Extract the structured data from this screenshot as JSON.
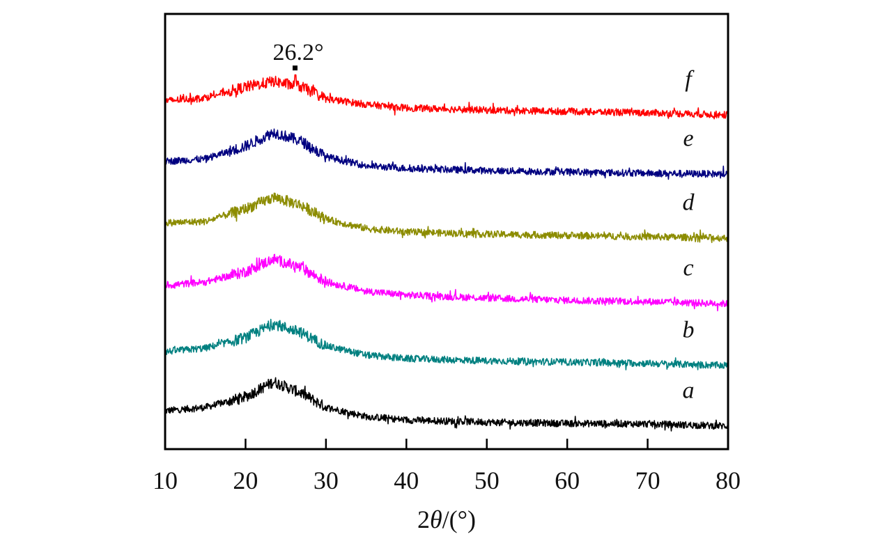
{
  "chart_data": {
    "type": "line",
    "title": "",
    "xlabel": "2θ/(°)",
    "xlabel_parts": {
      "prefix": "2",
      "symbol": "θ",
      "suffix": "/(°)"
    },
    "ylabel": "",
    "xlim": [
      10,
      80
    ],
    "ylim": [
      0,
      100
    ],
    "y_units": "a.u. (stacked, offset)",
    "xticks": [
      10,
      20,
      30,
      40,
      50,
      60,
      70,
      80
    ],
    "xtick_labels": [
      "10",
      "20",
      "30",
      "40",
      "50",
      "60",
      "70",
      "80"
    ],
    "grid": false,
    "legend": "inline labels at right end of each curve",
    "x": [
      10,
      15,
      20,
      23.5,
      27,
      30,
      35,
      40,
      50,
      60,
      70,
      80
    ],
    "series": [
      {
        "name": "a",
        "color": "#000000",
        "values": [
          8.8,
          9.6,
          12.0,
          15.5,
          12.8,
          9.6,
          7.5,
          6.7,
          6.2,
          5.9,
          5.8,
          5.3
        ]
      },
      {
        "name": "b",
        "color": "#008080",
        "values": [
          22.4,
          23.2,
          25.6,
          28.8,
          26.7,
          23.7,
          21.6,
          20.8,
          20.3,
          20.0,
          19.7,
          19.2
        ]
      },
      {
        "name": "c",
        "color": "#ff00ff",
        "values": [
          37.6,
          38.4,
          40.8,
          43.7,
          41.6,
          38.4,
          36.3,
          35.4,
          34.7,
          34.2,
          33.9,
          33.4
        ]
      },
      {
        "name": "d",
        "color": "#8c8c00",
        "values": [
          52.0,
          52.3,
          55.2,
          57.9,
          56.0,
          52.8,
          50.7,
          49.9,
          49.4,
          49.1,
          48.8,
          48.5
        ]
      },
      {
        "name": "e",
        "color": "#000080",
        "values": [
          66.1,
          66.7,
          69.6,
          72.8,
          70.7,
          67.2,
          65.1,
          64.5,
          64.0,
          63.7,
          63.4,
          63.2
        ]
      },
      {
        "name": "f",
        "color": "#ff0000",
        "values": [
          80.0,
          80.8,
          83.2,
          84.5,
          83.2,
          80.5,
          79.2,
          78.4,
          77.9,
          77.6,
          77.3,
          76.8
        ],
        "sharp_peak": {
          "x": 26.2,
          "y": 86.0
        }
      }
    ],
    "annotations": [
      {
        "text": "26.2°",
        "x": 26.2,
        "y": 87.5,
        "series": "f"
      }
    ]
  }
}
